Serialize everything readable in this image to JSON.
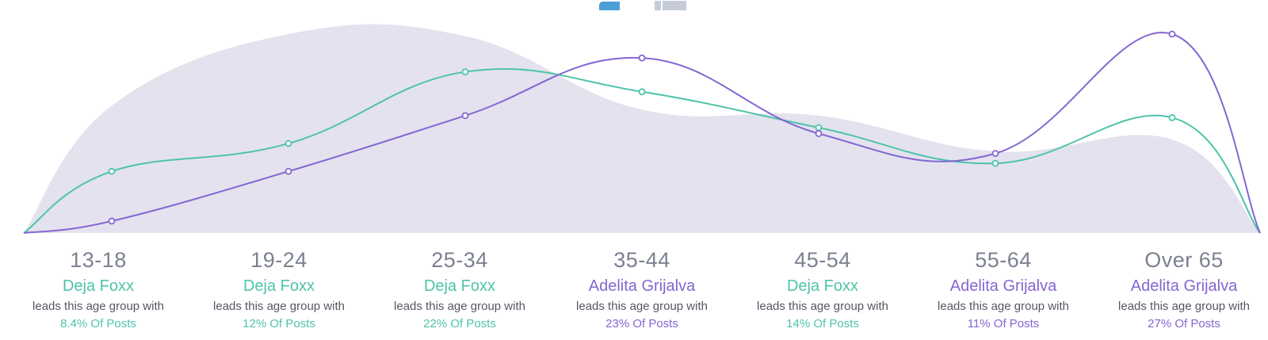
{
  "colors": {
    "deja": "#4ec3a9",
    "adelita": "#8566d2",
    "area": "#e3e2ee",
    "legend_blue": "#4a9fd6",
    "legend_gray": "#c6cbd8"
  },
  "chart_data": {
    "type": "line",
    "categories": [
      "13-18",
      "19-24",
      "25-34",
      "35-44",
      "45-54",
      "55-64",
      "Over 65"
    ],
    "series": [
      {
        "name": "Deja Foxx",
        "color": "#4ec3a9",
        "values": [
          0.31,
          0.45,
          0.81,
          0.71,
          0.53,
          0.35,
          0.58
        ]
      },
      {
        "name": "Adelita Grijalva",
        "color": "#8566d2",
        "values": [
          0.06,
          0.31,
          0.59,
          0.88,
          0.5,
          0.4,
          1.0
        ]
      },
      {
        "name": "",
        "type": "area",
        "color": "#e3e2ee",
        "values": [
          0.64,
          1.0,
          0.99,
          0.62,
          0.59,
          0.41,
          0.47
        ]
      }
    ],
    "ylim": [
      0,
      1
    ],
    "grid": false,
    "legend": "top-center"
  },
  "columns": [
    {
      "age": "13-18",
      "leader": "Deja Foxx",
      "candidate": "deja",
      "desc": "leads this age group with",
      "pct": "8.4% Of Posts"
    },
    {
      "age": "19-24",
      "leader": "Deja Foxx",
      "candidate": "deja",
      "desc": "leads this age group with",
      "pct": "12% Of Posts"
    },
    {
      "age": "25-34",
      "leader": "Deja Foxx",
      "candidate": "deja",
      "desc": "leads this age group with",
      "pct": "22% Of Posts"
    },
    {
      "age": "35-44",
      "leader": "Adelita Grijalva",
      "candidate": "adelita",
      "desc": "leads this age group with",
      "pct": "23% Of Posts"
    },
    {
      "age": "45-54",
      "leader": "Deja Foxx",
      "candidate": "deja",
      "desc": "leads this age group with",
      "pct": "14% Of Posts"
    },
    {
      "age": "55-64",
      "leader": "Adelita Grijalva",
      "candidate": "adelita",
      "desc": "leads this age group with",
      "pct": "11% Of Posts"
    },
    {
      "age": "Over 65",
      "leader": "Adelita Grijalva",
      "candidate": "adelita",
      "desc": "leads this age group with",
      "pct": "27% Of Posts"
    }
  ]
}
